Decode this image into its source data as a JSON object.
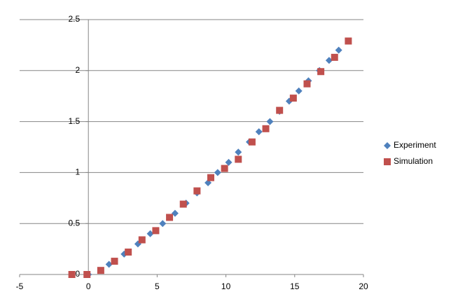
{
  "chart_data": {
    "type": "scatter",
    "xlim": [
      -5,
      20
    ],
    "xticks": [
      -5,
      0,
      5,
      10,
      15,
      20
    ],
    "ylim": [
      0,
      2.5
    ],
    "yticks": [
      0,
      0.5,
      1,
      1.5,
      2,
      2.5
    ],
    "grid": true,
    "legend": "right",
    "series": [
      {
        "name": "Experiment",
        "color": "#4f81bd",
        "marker": "diamond",
        "x": [
          0,
          1.5,
          2.6,
          3.6,
          4.5,
          5.4,
          6.3,
          7.1,
          7.9,
          8.7,
          9.4,
          10.2,
          10.9,
          11.7,
          12.4,
          13.2,
          13.9,
          14.6,
          15.3,
          16.0,
          16.8,
          17.5,
          18.2
        ],
        "values": [
          0,
          0.1,
          0.2,
          0.3,
          0.4,
          0.5,
          0.6,
          0.7,
          0.8,
          0.9,
          1.0,
          1.1,
          1.2,
          1.3,
          1.4,
          1.5,
          1.6,
          1.7,
          1.8,
          1.9,
          2.0,
          2.1,
          2.2
        ]
      },
      {
        "name": "Simulation",
        "color": "#c0504d",
        "marker": "square",
        "x": [
          -1.2,
          -0.1,
          0.9,
          1.9,
          2.9,
          3.9,
          4.9,
          5.9,
          6.9,
          7.9,
          8.9,
          9.9,
          10.9,
          11.9,
          12.9,
          13.9,
          14.9,
          15.9,
          16.9,
          17.9,
          18.9
        ],
        "values": [
          0,
          0,
          0.04,
          0.13,
          0.22,
          0.34,
          0.43,
          0.56,
          0.69,
          0.82,
          0.95,
          1.04,
          1.13,
          1.3,
          1.43,
          1.61,
          1.73,
          1.87,
          1.99,
          2.13,
          2.29
        ]
      }
    ]
  }
}
